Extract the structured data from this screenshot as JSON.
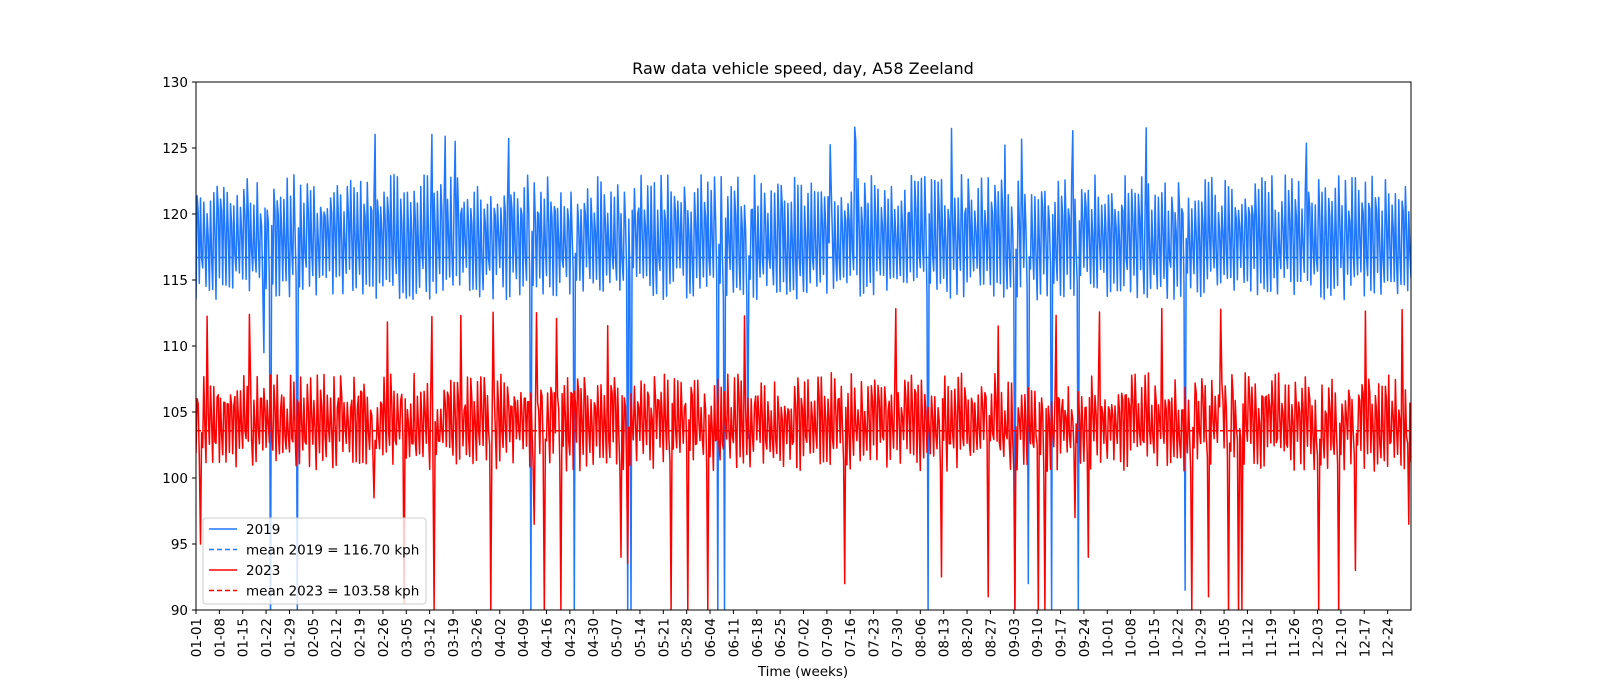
{
  "chart_data": {
    "type": "line",
    "title": "Raw data vehicle speed, day, A58 Zeeland",
    "xlabel": "Time (weeks)",
    "ylabel": "",
    "ylim": [
      90,
      130
    ],
    "yticks": [
      90,
      95,
      100,
      105,
      110,
      115,
      120,
      125,
      130
    ],
    "x_ticks": [
      "01-01",
      "01-08",
      "01-15",
      "01-22",
      "01-29",
      "02-05",
      "02-12",
      "02-19",
      "02-26",
      "03-05",
      "03-12",
      "03-19",
      "03-26",
      "04-02",
      "04-09",
      "04-16",
      "04-23",
      "04-30",
      "05-07",
      "05-14",
      "05-21",
      "05-28",
      "06-04",
      "06-11",
      "06-18",
      "06-25",
      "07-02",
      "07-09",
      "07-16",
      "07-23",
      "07-30",
      "08-06",
      "08-13",
      "08-20",
      "08-27",
      "09-03",
      "09-10",
      "09-17",
      "09-24",
      "10-01",
      "10-08",
      "10-15",
      "10-22",
      "10-29",
      "11-05",
      "11-12",
      "11-19",
      "11-26",
      "12-03",
      "12-10",
      "12-17",
      "12-24"
    ],
    "xlim": [
      "01-01",
      "12-31"
    ],
    "grid": false,
    "legend_placement": "lower-left",
    "series": [
      {
        "name": "2019",
        "color": "#1f77ff",
        "style": "solid",
        "description_values": {
          "typical_low": 114,
          "typical_high": 123,
          "max": 126.7
        },
        "samples_per_day": 3,
        "dips": [
          {
            "day": 20,
            "value": 109.5
          },
          {
            "day": 22,
            "value": 88
          },
          {
            "day": 30,
            "value": 90
          },
          {
            "day": 100,
            "value": 90
          },
          {
            "day": 113,
            "value": 90
          },
          {
            "day": 129,
            "value": 90
          },
          {
            "day": 130,
            "value": 90
          },
          {
            "day": 156,
            "value": 90
          },
          {
            "day": 158,
            "value": 90
          },
          {
            "day": 165,
            "value": 103
          },
          {
            "day": 219,
            "value": 90
          },
          {
            "day": 245,
            "value": 90
          },
          {
            "day": 249,
            "value": 92
          },
          {
            "day": 256,
            "value": 90
          },
          {
            "day": 264,
            "value": 90
          },
          {
            "day": 296,
            "value": 91.5
          }
        ]
      },
      {
        "name": "mean 2019 = 116.70 kph",
        "color": "#1f77ff",
        "style": "dashed",
        "constant": 116.7
      },
      {
        "name": "2023",
        "color": "#ff0000",
        "style": "solid",
        "description_values": {
          "typical_low": 101,
          "typical_high": 108,
          "max": 113
        },
        "samples_per_day": 3,
        "dips": [
          {
            "day": 1,
            "value": 95
          },
          {
            "day": 3,
            "value": 96
          },
          {
            "day": 53,
            "value": 98.5
          },
          {
            "day": 62,
            "value": 90.5
          },
          {
            "day": 71,
            "value": 90
          },
          {
            "day": 88,
            "value": 90
          },
          {
            "day": 101,
            "value": 96.5
          },
          {
            "day": 104,
            "value": 90
          },
          {
            "day": 109,
            "value": 90
          },
          {
            "day": 127,
            "value": 94
          },
          {
            "day": 129,
            "value": 93.5
          },
          {
            "day": 142,
            "value": 90
          },
          {
            "day": 147,
            "value": 90
          },
          {
            "day": 153,
            "value": 90
          },
          {
            "day": 194,
            "value": 92
          },
          {
            "day": 223,
            "value": 92.5
          },
          {
            "day": 237,
            "value": 91
          },
          {
            "day": 245,
            "value": 90
          },
          {
            "day": 252,
            "value": 90
          },
          {
            "day": 254,
            "value": 90
          },
          {
            "day": 263,
            "value": 97
          },
          {
            "day": 267,
            "value": 94
          },
          {
            "day": 298,
            "value": 90
          },
          {
            "day": 303,
            "value": 91
          },
          {
            "day": 309,
            "value": 90
          },
          {
            "day": 312,
            "value": 90
          },
          {
            "day": 313,
            "value": 90
          },
          {
            "day": 336,
            "value": 90
          },
          {
            "day": 342,
            "value": 90
          },
          {
            "day": 347,
            "value": 93
          },
          {
            "day": 363,
            "value": 96.5
          }
        ]
      },
      {
        "name": "mean 2023 = 103.58 kph",
        "color": "#ff0000",
        "style": "dashed",
        "constant": 103.58
      }
    ]
  }
}
